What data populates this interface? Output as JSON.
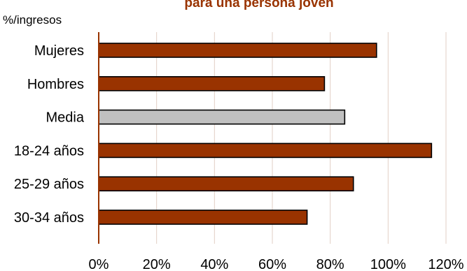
{
  "chart_data": {
    "type": "bar",
    "orientation": "horizontal",
    "title": "para una persona joven",
    "unit_label": "%/ingresos",
    "xlim": [
      0,
      120
    ],
    "x_ticks": [
      "0%",
      "20%",
      "40%",
      "60%",
      "80%",
      "100%",
      "120%"
    ],
    "x_tick_values": [
      0,
      20,
      40,
      60,
      80,
      100,
      120
    ],
    "grid": true,
    "legend": "none",
    "categories": [
      "Mujeres",
      "Hombres",
      "Media",
      "18-24 años",
      "25-29 años",
      "30-34 años"
    ],
    "values": [
      96,
      78,
      85,
      115,
      88,
      72
    ],
    "highlight_category": "Media",
    "colors": {
      "bar": "#993300",
      "highlight": "#c0c0c0",
      "bar_border": "#000000",
      "axis": "#993300",
      "gridline": "#e2cfc4",
      "title": "#993300"
    }
  }
}
